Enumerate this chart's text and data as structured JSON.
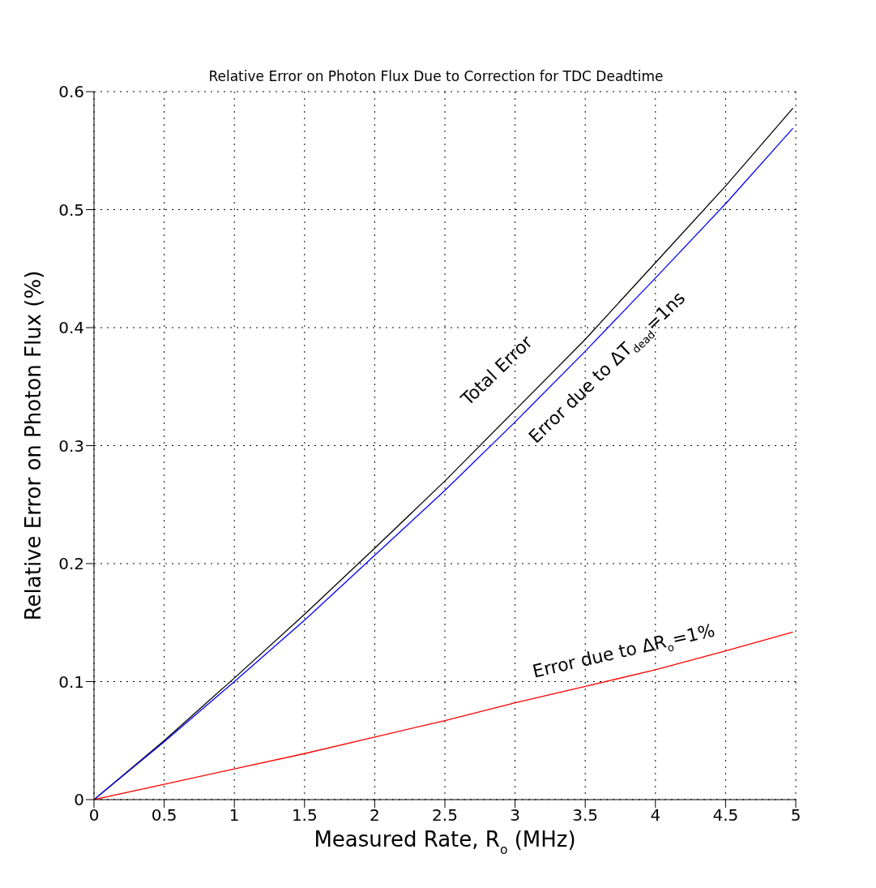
{
  "chart_data": {
    "type": "line",
    "title": "Relative Error on Photon Flux Due to Correction for TDC Deadtime",
    "xlabel": "Measured Rate, R$_{o}$ (MHz)",
    "ylabel": "Relative Error on Photon Flux (%)",
    "x": [
      0,
      0.5,
      1,
      1.5,
      2,
      2.5,
      3,
      3.5,
      4,
      4.5,
      4.98
    ],
    "series": [
      {
        "color": "#000000",
        "values": [
          0,
          0.05,
          0.103,
          0.157,
          0.213,
          0.27,
          0.33,
          0.39,
          0.455,
          0.52,
          0.586
        ]
      },
      {
        "color": "#0000ff",
        "values": [
          0,
          0.049,
          0.1,
          0.152,
          0.207,
          0.262,
          0.32,
          0.38,
          0.442,
          0.505,
          0.569
        ]
      },
      {
        "color": "#ff0000",
        "values": [
          0,
          0.013,
          0.026,
          0.039,
          0.053,
          0.067,
          0.082,
          0.096,
          0.11,
          0.126,
          0.142
        ]
      }
    ],
    "annotations": [
      "Total Error",
      "Error due to ΔT$_{dead}$=1ns",
      "Error due to ΔR$_{o}$=1%"
    ],
    "xlim": [
      0,
      5
    ],
    "xticks": [
      0,
      0.5,
      1,
      1.5,
      2,
      2.5,
      3,
      3.5,
      4,
      4.5,
      5
    ],
    "ylim": [
      0,
      0.6
    ],
    "yticks": [
      0,
      0.1,
      0.2,
      0.3,
      0.4,
      0.5,
      0.6
    ],
    "grid": true,
    "legend": false,
    "marker": "none",
    "line_style": "solid"
  }
}
